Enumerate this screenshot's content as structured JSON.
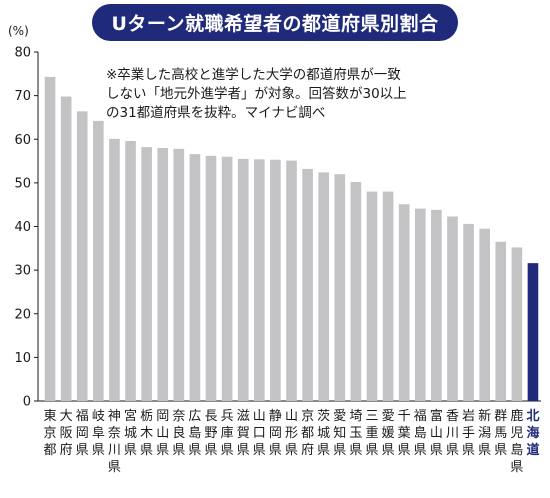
{
  "chart_data": {
    "type": "bar",
    "title": "Uターン就職希望者の都道府県別割合",
    "unit_label": "(%)",
    "note": [
      "※卒業した高校と進学した大学の都道府県が一致",
      "しない「地元外進学者」が対象。回答数が30以上",
      "の31都道府県を抜粋。マイナビ調べ"
    ],
    "ylim": [
      0,
      80
    ],
    "yticks": [
      0,
      10,
      20,
      30,
      40,
      50,
      60,
      70,
      80
    ],
    "grid": false,
    "categories": [
      "東京都",
      "大阪府",
      "福岡県",
      "岐阜県",
      "神奈川県",
      "宮城県",
      "栃木県",
      "岡山県",
      "奈良県",
      "広島県",
      "長野県",
      "兵庫県",
      "滋賀県",
      "山口県",
      "静岡県",
      "山形県",
      "京都府",
      "茨城県",
      "愛知県",
      "埼玉県",
      "三重県",
      "愛媛県",
      "千葉県",
      "福島県",
      "富山県",
      "香川県",
      "岩手県",
      "新潟県",
      "群馬県",
      "鹿児島県",
      "北海道"
    ],
    "values": [
      74.3,
      69.8,
      66.4,
      64.2,
      60.1,
      59.6,
      58.2,
      58.0,
      57.8,
      56.6,
      56.2,
      56.0,
      55.5,
      55.4,
      55.3,
      55.1,
      53.2,
      52.4,
      52.0,
      50.2,
      48.0,
      48.0,
      45.1,
      44.1,
      43.8,
      42.3,
      40.6,
      39.5,
      36.5,
      35.2,
      31.6
    ],
    "bar_color": "#c3c3c6",
    "highlight_color": "#1f2a7a",
    "highlight_category": "北海道"
  }
}
